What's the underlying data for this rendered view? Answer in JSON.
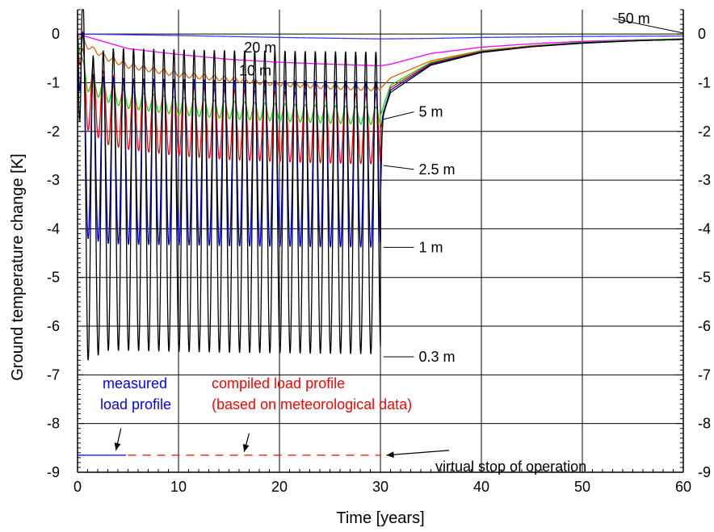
{
  "chart_data": {
    "type": "line",
    "title": "",
    "xlabel": "Time [years]",
    "ylabel": "Ground temperature change [K]",
    "xlim": [
      0,
      60
    ],
    "ylim": [
      -9,
      0.5
    ],
    "xticks": [
      0,
      10,
      20,
      30,
      40,
      50,
      60
    ],
    "yticks": [
      0,
      -1,
      -2,
      -3,
      -4,
      -5,
      -6,
      -7,
      -8,
      -9
    ],
    "grid": true,
    "legend": "none",
    "stop_year": 30,
    "series": [
      {
        "name": "50 m",
        "color": "#3a3aff",
        "x": [
          0,
          10,
          20,
          30,
          35,
          40,
          50,
          60
        ],
        "mean": [
          0,
          -0.03,
          -0.07,
          -0.1,
          -0.09,
          -0.07,
          -0.05,
          -0.04
        ],
        "amplitude": 0
      },
      {
        "name": "20 m",
        "color": "#ff00ff",
        "x": [
          0,
          5,
          10,
          15,
          20,
          25,
          30,
          31,
          35,
          40,
          45,
          50,
          55,
          60
        ],
        "mean": [
          0,
          -0.3,
          -0.42,
          -0.52,
          -0.58,
          -0.62,
          -0.65,
          -0.62,
          -0.4,
          -0.27,
          -0.2,
          -0.15,
          -0.12,
          -0.1
        ],
        "amplitude": 0
      },
      {
        "name": "10 m",
        "color": "#e06000",
        "x": [
          0,
          1,
          3,
          5,
          10,
          15,
          20,
          25,
          30,
          31,
          35,
          40,
          45,
          50,
          55,
          60
        ],
        "mean": [
          0,
          -0.25,
          -0.5,
          -0.65,
          -0.83,
          -0.93,
          -1.02,
          -1.08,
          -1.12,
          -0.9,
          -0.55,
          -0.34,
          -0.24,
          -0.17,
          -0.13,
          -0.1
        ],
        "amplitude": 0.05
      },
      {
        "name": "5 m",
        "color": "#00dd00",
        "x": [
          0,
          0.5,
          1,
          3,
          5,
          10,
          15,
          20,
          25,
          30,
          30.5,
          31,
          35,
          40,
          45,
          50,
          55,
          60
        ],
        "mean": [
          0,
          -0.7,
          -1.0,
          -1.22,
          -1.35,
          -1.48,
          -1.56,
          -1.61,
          -1.65,
          -1.68,
          -1.35,
          -1.05,
          -0.58,
          -0.35,
          -0.24,
          -0.17,
          -0.13,
          -0.1
        ],
        "amplitude": 0.18
      },
      {
        "name": "2.5 m",
        "color": "#ff0000",
        "x": [
          0,
          0.5,
          1,
          3,
          5,
          10,
          15,
          20,
          25,
          30,
          30.5,
          31,
          35,
          40,
          45,
          50,
          55,
          60
        ],
        "mean": [
          0,
          -1.0,
          -1.25,
          -1.55,
          -1.65,
          -1.78,
          -1.86,
          -1.9,
          -1.93,
          -1.95,
          -1.5,
          -1.1,
          -0.6,
          -0.36,
          -0.25,
          -0.18,
          -0.14,
          -0.11
        ],
        "amplitude": 0.72
      },
      {
        "name": "1 m",
        "color": "#0000cc",
        "x": [
          0,
          0.5,
          1,
          3,
          5,
          10,
          15,
          20,
          25,
          30,
          30.3,
          31,
          35,
          40,
          45,
          50,
          55,
          60
        ],
        "mean": [
          0,
          -1.6,
          -2.5,
          -2.6,
          -2.62,
          -2.63,
          -2.65,
          -2.66,
          -2.67,
          -2.68,
          -1.6,
          -1.15,
          -0.62,
          -0.37,
          -0.26,
          -0.18,
          -0.14,
          -0.11
        ],
        "amplitude": 1.7
      },
      {
        "name": "0.3 m",
        "color": "#000000",
        "x": [
          0,
          0.5,
          1,
          3,
          5,
          10,
          15,
          20,
          25,
          30,
          30.2,
          31,
          35,
          40,
          45,
          50,
          55,
          60
        ],
        "mean": [
          0,
          -2.2,
          -3.6,
          -3.4,
          -3.4,
          -3.42,
          -3.44,
          -3.45,
          -3.46,
          -3.47,
          -1.7,
          -1.2,
          -0.64,
          -0.38,
          -0.26,
          -0.19,
          -0.14,
          -0.11
        ],
        "amplitude": 3.1
      }
    ],
    "annotations": {
      "series_labels": [
        {
          "text": "50 m",
          "x": 53.5,
          "y": 0.32,
          "tip": [
            60,
            0.02
          ]
        },
        {
          "text": "20 m",
          "x": 16.5,
          "y": -0.28
        },
        {
          "text": "10 m",
          "x": 16.0,
          "y": -0.75
        },
        {
          "text": "5 m",
          "x": 33.8,
          "y": -1.6,
          "tip": [
            30.3,
            -1.75
          ]
        },
        {
          "text": "2.5 m",
          "x": 33.8,
          "y": -2.78,
          "tip": [
            30.3,
            -2.7
          ]
        },
        {
          "text": "1 m",
          "x": 33.8,
          "y": -4.38,
          "tip": [
            30.3,
            -4.38
          ]
        },
        {
          "text": "0.3 m",
          "x": 33.8,
          "y": -6.63,
          "tip": [
            30.3,
            -6.63
          ]
        }
      ],
      "measured": {
        "line1": "measured",
        "line2": "load profile",
        "color": "#0000ff"
      },
      "compiled": {
        "line1": "compiled load profile",
        "line2": "(based on meteorological data)",
        "color": "#ff0000"
      },
      "virtual_stop": {
        "text": "virtual stop of operation",
        "color": "#000000"
      }
    }
  }
}
